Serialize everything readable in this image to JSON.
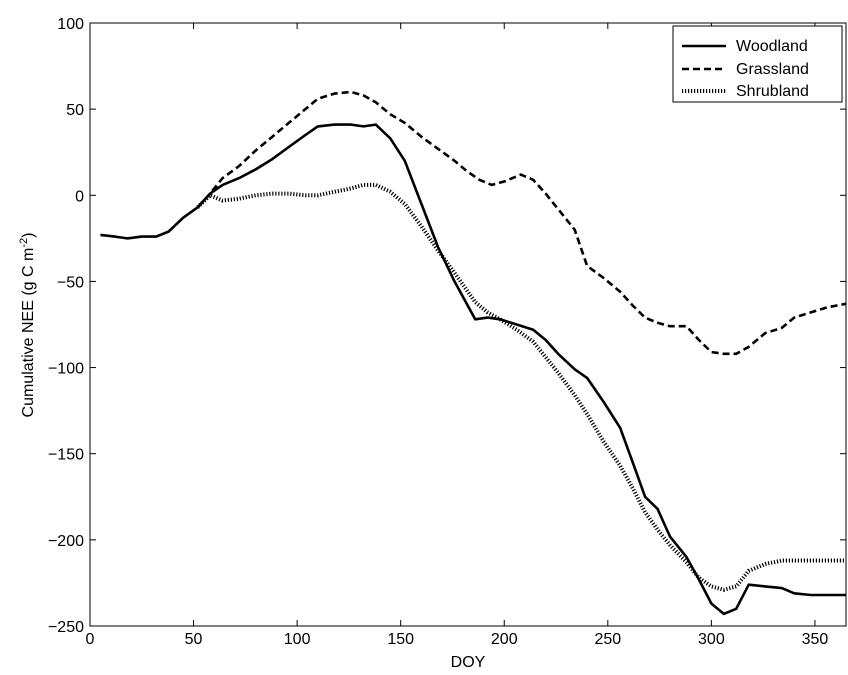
{
  "chart_data": {
    "type": "line",
    "xlabel": "DOY",
    "ylabel": "Cumulative NEE (g C m",
    "ylabel_sup": "-2",
    "ylabel_tail": ")",
    "xlim": [
      0,
      365
    ],
    "ylim": [
      -250,
      100
    ],
    "xticks": [
      0,
      50,
      100,
      150,
      200,
      250,
      300,
      350
    ],
    "yticks": [
      100,
      50,
      0,
      -50,
      -100,
      -150,
      -200,
      -250
    ],
    "grid": false,
    "legend_position": "top-right",
    "series": [
      {
        "name": "Woodland",
        "style": "solid",
        "x": [
          5,
          12,
          18,
          25,
          32,
          38,
          45,
          52,
          58,
          64,
          72,
          80,
          88,
          96,
          104,
          110,
          118,
          126,
          132,
          138,
          145,
          152,
          160,
          168,
          176,
          186,
          192,
          198,
          206,
          214,
          220,
          226,
          234,
          240,
          248,
          256,
          262,
          268,
          274,
          280,
          288,
          294,
          300,
          306,
          312,
          318,
          326,
          334,
          340,
          348,
          356,
          365
        ],
        "y": [
          -23,
          -24,
          -25,
          -24,
          -24,
          -21,
          -13,
          -7,
          1,
          6,
          10,
          15,
          21,
          28,
          35,
          40,
          41,
          41,
          40,
          41,
          33,
          20,
          -5,
          -30,
          -50,
          -72,
          -71,
          -72,
          -75,
          -78,
          -84,
          -92,
          -101,
          -106,
          -120,
          -135,
          -155,
          -175,
          -182,
          -198,
          -210,
          -223,
          -237,
          -243,
          -240,
          -226,
          -227,
          -228,
          -231,
          -232,
          -232,
          -232
        ]
      },
      {
        "name": "Grassland",
        "style": "dashed",
        "x": [
          52,
          58,
          64,
          72,
          80,
          88,
          96,
          104,
          110,
          118,
          126,
          132,
          138,
          145,
          152,
          160,
          168,
          176,
          182,
          188,
          194,
          200,
          208,
          214,
          220,
          226,
          234,
          240,
          248,
          256,
          262,
          268,
          274,
          280,
          288,
          294,
          300,
          306,
          312,
          318,
          326,
          334,
          340,
          348,
          356,
          365
        ],
        "y": [
          -7,
          1,
          10,
          17,
          26,
          34,
          42,
          50,
          56,
          59,
          60,
          58,
          54,
          47,
          42,
          34,
          27,
          20,
          14,
          9,
          6,
          8,
          12,
          9,
          1,
          -8,
          -20,
          -41,
          -48,
          -56,
          -64,
          -71,
          -74,
          -76,
          -76,
          -84,
          -91,
          -92,
          -92,
          -88,
          -80,
          -77,
          -71,
          -68,
          -65,
          -63
        ]
      },
      {
        "name": "Shrubland",
        "style": "dotted",
        "x": [
          52,
          58,
          64,
          72,
          80,
          88,
          96,
          104,
          110,
          118,
          126,
          132,
          138,
          145,
          152,
          160,
          168,
          176,
          186,
          192,
          198,
          206,
          214,
          220,
          226,
          234,
          240,
          248,
          256,
          262,
          268,
          274,
          280,
          288,
          294,
          300,
          306,
          312,
          318,
          326,
          334,
          340,
          348,
          356,
          365
        ],
        "y": [
          -7,
          0,
          -3,
          -2,
          0,
          1,
          1,
          0,
          0,
          2,
          4,
          6,
          6,
          2,
          -5,
          -18,
          -32,
          -45,
          -62,
          -68,
          -72,
          -78,
          -85,
          -94,
          -103,
          -116,
          -127,
          -143,
          -157,
          -170,
          -184,
          -194,
          -203,
          -213,
          -222,
          -227,
          -229,
          -227,
          -218,
          -214,
          -212,
          -212,
          -212,
          -212,
          -212
        ]
      }
    ]
  },
  "colors": {
    "line": "#000000",
    "background": "#ffffff"
  }
}
